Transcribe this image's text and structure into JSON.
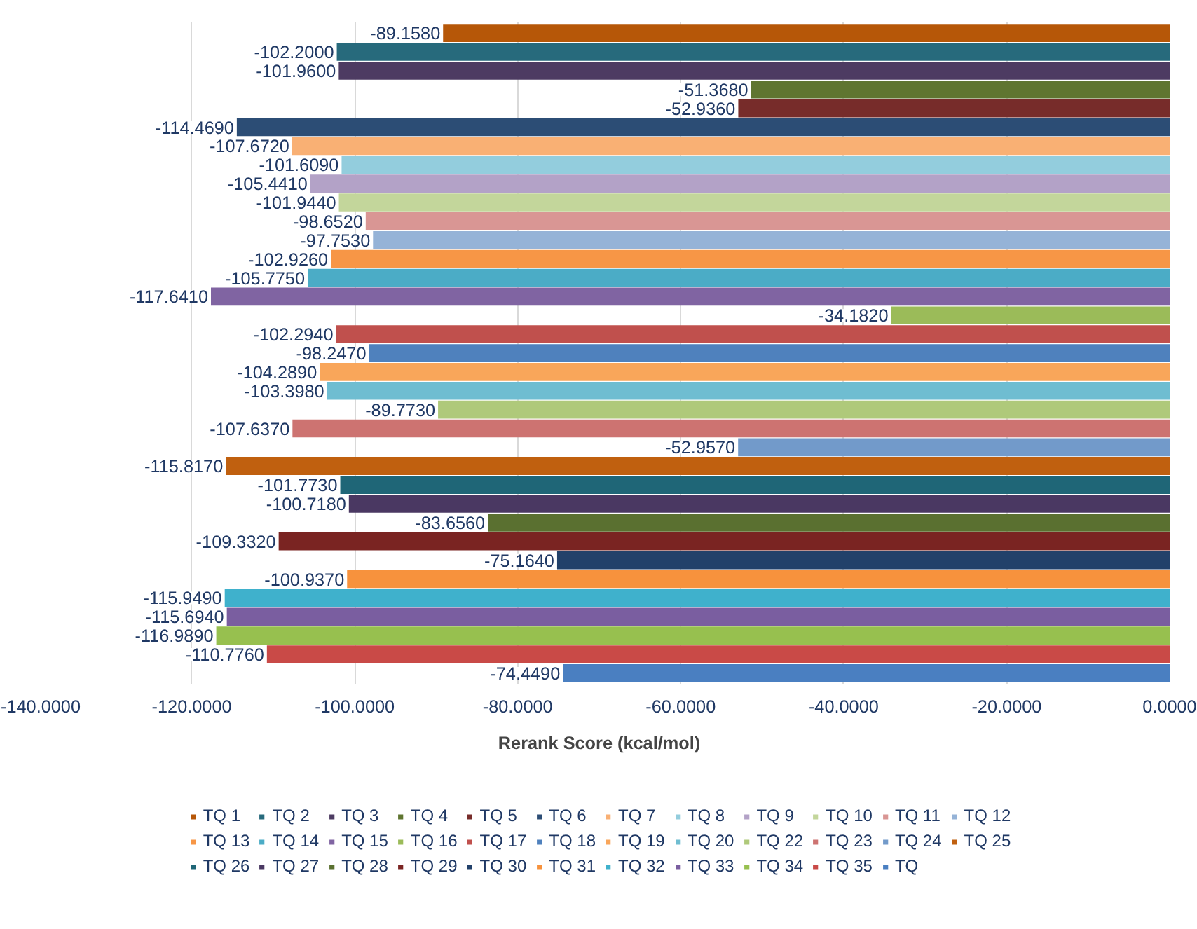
{
  "chart_data": {
    "type": "bar",
    "orientation": "horizontal",
    "xlabel": "Rerank Score (kcal/mol)",
    "categories": [
      null
    ],
    "xlim": [
      -140,
      0
    ],
    "xticks": [
      {
        "value": -140,
        "label": "-140.0000"
      },
      {
        "value": -120,
        "label": "-120.0000"
      },
      {
        "value": -100,
        "label": "-100.0000"
      },
      {
        "value": -80,
        "label": "-80.0000"
      },
      {
        "value": -60,
        "label": "-60.0000"
      },
      {
        "value": -40,
        "label": "-40.0000"
      },
      {
        "value": -20,
        "label": "-20.0000"
      },
      {
        "value": 0,
        "label": "0.0000"
      }
    ],
    "grid": "x",
    "legend": "bottom",
    "tick_labels": "x",
    "series": [
      {
        "name": "TQ 1",
        "color": "#b65708",
        "values": [
          -89.158
        ],
        "value_labels": [
          "-89.1580"
        ]
      },
      {
        "name": "TQ 2",
        "color": "#276a7c",
        "values": [
          -102.2
        ],
        "value_labels": [
          "-102.2000"
        ]
      },
      {
        "name": "TQ 3",
        "color": "#4d3b62",
        "values": [
          -101.96
        ],
        "value_labels": [
          "-101.9600"
        ]
      },
      {
        "name": "TQ 4",
        "color": "#5f7530",
        "values": [
          -51.368
        ],
        "value_labels": [
          "-51.3680"
        ]
      },
      {
        "name": "TQ 5",
        "color": "#772c2a",
        "values": [
          -52.936
        ],
        "value_labels": [
          "-52.9360"
        ]
      },
      {
        "name": "TQ 6",
        "color": "#2c4d75",
        "values": [
          -114.469
        ],
        "value_labels": [
          "-114.4690"
        ]
      },
      {
        "name": "TQ 7",
        "color": "#f9b074",
        "values": [
          -107.672
        ],
        "value_labels": [
          "-107.6720"
        ]
      },
      {
        "name": "TQ 8",
        "color": "#93cddd",
        "values": [
          -101.609
        ],
        "value_labels": [
          "-101.6090"
        ]
      },
      {
        "name": "TQ 9",
        "color": "#b3a2c7",
        "values": [
          -105.441
        ],
        "value_labels": [
          "-105.4410"
        ]
      },
      {
        "name": "TQ 10",
        "color": "#c3d69b",
        "values": [
          -101.944
        ],
        "value_labels": [
          "-101.9440"
        ]
      },
      {
        "name": "TQ 11",
        "color": "#d99694",
        "values": [
          -98.652
        ],
        "value_labels": [
          "-98.6520"
        ]
      },
      {
        "name": "TQ 12",
        "color": "#95b3d7",
        "values": [
          -97.753
        ],
        "value_labels": [
          "-97.7530"
        ]
      },
      {
        "name": "TQ 13",
        "color": "#f79646",
        "values": [
          -102.926
        ],
        "value_labels": [
          "-102.9260"
        ]
      },
      {
        "name": "TQ 14",
        "color": "#4bacc6",
        "values": [
          -105.775
        ],
        "value_labels": [
          "-105.7750"
        ]
      },
      {
        "name": "TQ 15",
        "color": "#8064a2",
        "values": [
          -117.641
        ],
        "value_labels": [
          "-117.6410"
        ]
      },
      {
        "name": "TQ 16",
        "color": "#9bbb59",
        "values": [
          -34.182
        ],
        "value_labels": [
          "-34.1820"
        ]
      },
      {
        "name": "TQ 17",
        "color": "#c0504d",
        "values": [
          -102.294
        ],
        "value_labels": [
          "-102.2940"
        ]
      },
      {
        "name": "TQ 18",
        "color": "#4f81bd",
        "values": [
          -98.247
        ],
        "value_labels": [
          "-98.2470"
        ]
      },
      {
        "name": "TQ 19",
        "color": "#f9a65a",
        "values": [
          -104.289
        ],
        "value_labels": [
          "-104.2890"
        ]
      },
      {
        "name": "TQ 20",
        "color": "#6fbdd1",
        "values": [
          -103.398
        ],
        "value_labels": [
          "-103.3980"
        ]
      },
      {
        "name": "TQ 22",
        "color": "#afc97a",
        "values": [
          -89.773
        ],
        "value_labels": [
          "-89.7730"
        ]
      },
      {
        "name": "TQ 23",
        "color": "#cd7371",
        "values": [
          -107.637
        ],
        "value_labels": [
          "-107.6370"
        ]
      },
      {
        "name": "TQ 24",
        "color": "#729aca",
        "values": [
          -52.957
        ],
        "value_labels": [
          "-52.9570"
        ]
      },
      {
        "name": "TQ 25",
        "color": "#c0600f",
        "values": [
          -115.817
        ],
        "value_labels": [
          "-115.8170"
        ]
      },
      {
        "name": "TQ 26",
        "color": "#1f6677",
        "values": [
          -101.773
        ],
        "value_labels": [
          "-101.7730"
        ]
      },
      {
        "name": "TQ 27",
        "color": "#4a3862",
        "values": [
          -100.718
        ],
        "value_labels": [
          "-100.7180"
        ]
      },
      {
        "name": "TQ 28",
        "color": "#5a7030",
        "values": [
          -83.656
        ],
        "value_labels": [
          "-83.6560"
        ]
      },
      {
        "name": "TQ 29",
        "color": "#7a2422",
        "values": [
          -109.332
        ],
        "value_labels": [
          "-109.3320"
        ]
      },
      {
        "name": "TQ 30",
        "color": "#22416a",
        "values": [
          -75.164
        ],
        "value_labels": [
          "-75.1640"
        ]
      },
      {
        "name": "TQ 31",
        "color": "#f7923d",
        "values": [
          -100.937
        ],
        "value_labels": [
          "-100.9370"
        ]
      },
      {
        "name": "TQ 32",
        "color": "#3fb1cc",
        "values": [
          -115.949
        ],
        "value_labels": [
          "-115.9490"
        ]
      },
      {
        "name": "TQ 33",
        "color": "#7a5ea0",
        "values": [
          -115.694
        ],
        "value_labels": [
          "-115.6940"
        ]
      },
      {
        "name": "TQ 34",
        "color": "#97c04f",
        "values": [
          -116.989
        ],
        "value_labels": [
          "-116.9890"
        ]
      },
      {
        "name": "TQ 35",
        "color": "#c94a47",
        "values": [
          -110.776
        ],
        "value_labels": [
          "-110.7760"
        ]
      },
      {
        "name": "TQ",
        "color": "#4a7fc1",
        "values": [
          -74.449
        ],
        "value_labels": [
          "-74.4490"
        ]
      }
    ]
  }
}
